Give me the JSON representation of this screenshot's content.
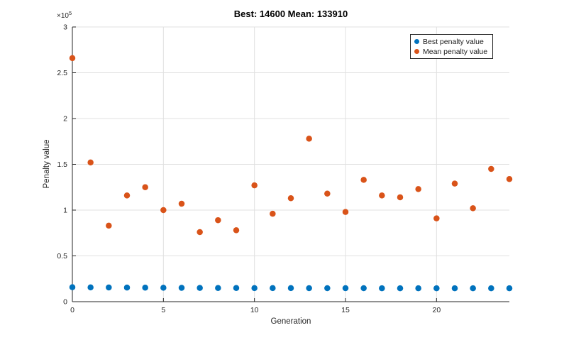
{
  "chart_data": {
    "type": "scatter",
    "title": "Best: 14600 Mean: 133910",
    "xlabel": "Generation",
    "ylabel": "Penalty value",
    "y_multiplier_base": "×10",
    "y_multiplier_exp": "5",
    "xlim": [
      0,
      24
    ],
    "ylim": [
      0,
      300000
    ],
    "xticks": [
      0,
      5,
      10,
      15,
      20
    ],
    "xtick_labels": [
      "0",
      "5",
      "10",
      "15",
      "20"
    ],
    "yticks": [
      0,
      50000,
      100000,
      150000,
      200000,
      250000,
      300000
    ],
    "ytick_labels": [
      "0",
      "0.5",
      "1",
      "1.5",
      "2",
      "2.5",
      "3"
    ],
    "grid": true,
    "legend_position": "top-right",
    "axis_color": "#262626",
    "grid_color": "#e0e0e0",
    "marker_diameter": 8.5,
    "x": [
      0,
      1,
      2,
      3,
      4,
      5,
      6,
      7,
      8,
      9,
      10,
      11,
      12,
      13,
      14,
      15,
      16,
      17,
      18,
      19,
      20,
      21,
      22,
      23,
      24
    ],
    "series": [
      {
        "name": "Best penalty value",
        "color": "#0072BD",
        "values": [
          15800,
          15600,
          15500,
          15400,
          15300,
          15200,
          15100,
          15000,
          14900,
          14900,
          14800,
          14800,
          14800,
          14700,
          14700,
          14700,
          14700,
          14600,
          14600,
          14600,
          14600,
          14600,
          14600,
          14600,
          14600
        ]
      },
      {
        "name": "Mean penalty value",
        "color": "#D95319",
        "values": [
          266000,
          152000,
          83000,
          116000,
          125000,
          100000,
          107000,
          76000,
          89000,
          78000,
          127000,
          96000,
          113000,
          178000,
          118000,
          98000,
          133000,
          116000,
          114000,
          123000,
          91000,
          129000,
          102000,
          145000,
          133910
        ]
      }
    ]
  }
}
